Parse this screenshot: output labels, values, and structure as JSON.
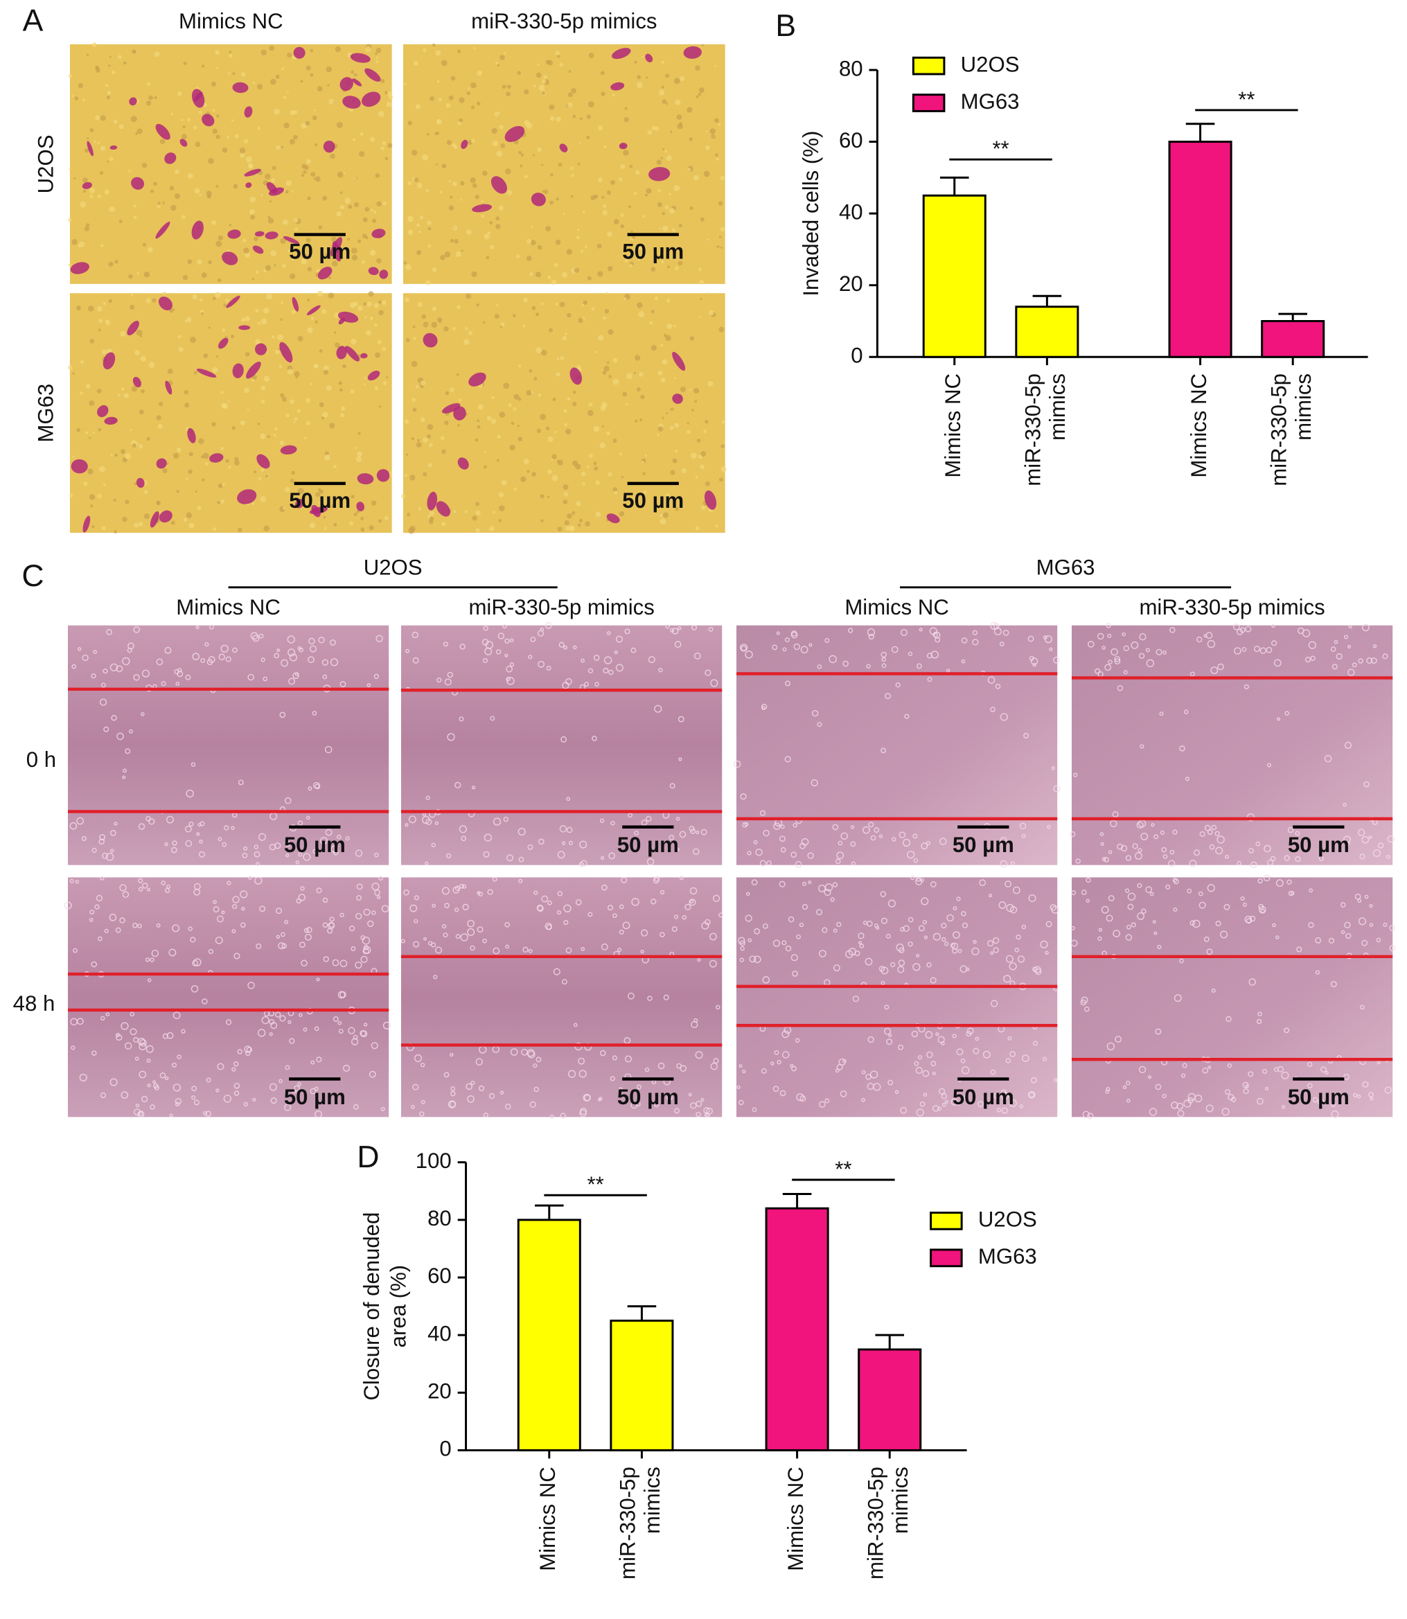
{
  "panel_a": {
    "label": "A",
    "columns": [
      "Mimics NC",
      "miR-330-5p mimics"
    ],
    "rows": [
      "U2OS",
      "MG63"
    ],
    "scale_bar": "50 µm"
  },
  "panel_c": {
    "label": "C",
    "groups": [
      "U2OS",
      "MG63"
    ],
    "columns": [
      "Mimics NC",
      "miR-330-5p mimics",
      "Mimics NC",
      "miR-330-5p mimics"
    ],
    "rows": [
      "0 h",
      "48 h"
    ],
    "scale_bar": "50 µm"
  },
  "chart_data": [
    {
      "type": "bar",
      "label": "B",
      "ylabel": "Invaded cells (%)",
      "categories": [
        "Mimics NC",
        "miR-330-5p mimics"
      ],
      "series": [
        {
          "name": "U2OS",
          "color": "#ffff00",
          "values": [
            45,
            14
          ],
          "errors": [
            5,
            3
          ]
        },
        {
          "name": "MG63",
          "color": "#f0147c",
          "values": [
            60,
            10
          ],
          "errors": [
            5,
            2
          ]
        }
      ],
      "ylim": [
        0,
        80
      ],
      "yticks": [
        0,
        20,
        40,
        60,
        80
      ],
      "legend": "upper left",
      "significance": [
        "**",
        "**"
      ]
    },
    {
      "type": "bar",
      "label": "D",
      "ylabel": "Closure of denuded area (%)",
      "categories": [
        "Mimics NC",
        "miR-330-5p mimics"
      ],
      "series": [
        {
          "name": "U2OS",
          "color": "#ffff00",
          "values": [
            80,
            45
          ],
          "errors": [
            5,
            5
          ]
        },
        {
          "name": "MG63",
          "color": "#f0147c",
          "values": [
            84,
            35
          ],
          "errors": [
            5,
            5
          ]
        }
      ],
      "ylim": [
        0,
        100
      ],
      "yticks": [
        0,
        20,
        40,
        60,
        80,
        100
      ],
      "legend": "right",
      "significance": [
        "**",
        "**"
      ]
    }
  ]
}
